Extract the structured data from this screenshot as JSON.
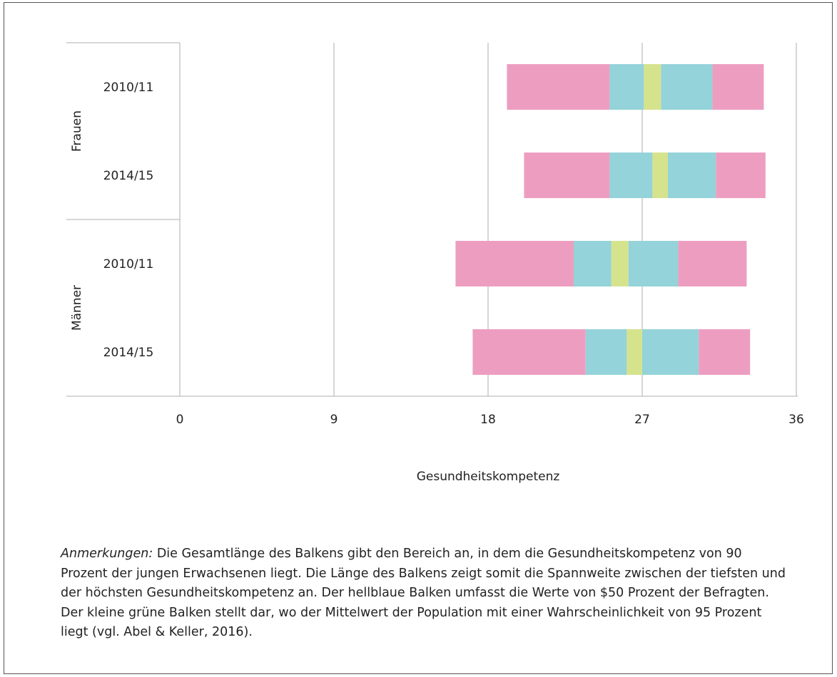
{
  "chart_data": {
    "type": "bar",
    "orientation": "horizontal",
    "stacked": true,
    "xlabel": "Gesundheitskompetenz",
    "xlim": [
      0,
      36
    ],
    "xticks": [
      0,
      9,
      18,
      27,
      36
    ],
    "grid": true,
    "groups": [
      {
        "label": "Frauen",
        "categories": [
          "2010/11",
          "2014/15"
        ]
      },
      {
        "label": "Männer",
        "categories": [
          "2010/11",
          "2014/15"
        ]
      }
    ],
    "categories": [
      "Frauen 2010/11",
      "Frauen 2014/15",
      "Männer 2010/11",
      "Männer 2014/15"
    ],
    "category_labels": [
      "2010/11",
      "2014/15",
      "2010/11",
      "2014/15"
    ],
    "bars": [
      {
        "p5": 19.1,
        "p25": 25.1,
        "ci_low": 27.1,
        "ci_high": 28.1,
        "p75": 31.1,
        "p95": 34.1
      },
      {
        "p5": 20.1,
        "p25": 25.1,
        "ci_low": 27.6,
        "ci_high": 28.5,
        "p75": 31.3,
        "p95": 34.2
      },
      {
        "p5": 16.1,
        "p25": 23.0,
        "ci_low": 25.2,
        "ci_high": 26.2,
        "p75": 29.1,
        "p95": 33.1
      },
      {
        "p5": 17.1,
        "p25": 23.7,
        "ci_low": 26.1,
        "ci_high": 27.0,
        "p75": 30.3,
        "p95": 33.3
      }
    ],
    "segment_colors": {
      "outer": "#ED9EC0",
      "inner": "#94D3D9",
      "ci": "#D6E38D"
    }
  },
  "note": {
    "label": "Anmerkungen:",
    "text": " Die Gesamtlänge des Balkens gibt den Bereich an, in dem die Gesundheitskompetenz von 90 Prozent der jungen Erwachsenen liegt. Die Länge des Balkens zeigt somit die Spannweite zwischen der tiefsten und der höchsten Gesundheitskompetenz an. Der hellblaue Balken umfasst die Werte von $50 Prozent der Befragten. Der kleine grüne Balken stellt dar, wo der Mittelwert der Population mit einer Wahrscheinlichkeit von 95 Prozent liegt (vgl. Abel & Keller, 2016)."
  }
}
